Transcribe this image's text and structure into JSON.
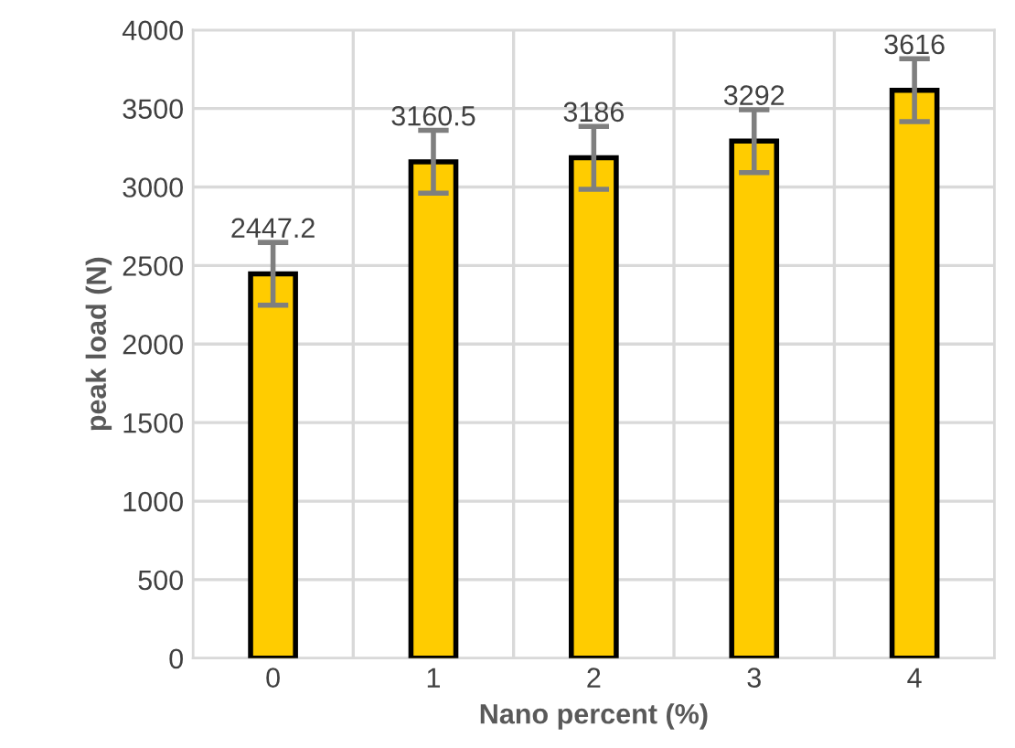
{
  "chart_data": {
    "type": "bar",
    "xlabel": "Nano percent (%)",
    "ylabel": "peak load (N)",
    "categories": [
      "0",
      "1",
      "2",
      "3",
      "4"
    ],
    "values": [
      2447.2,
      3160.5,
      3186,
      3292,
      3616
    ],
    "errors": [
      200,
      200,
      200,
      200,
      200
    ],
    "color": "#ffcc00",
    "ylim": [
      0,
      4000
    ],
    "yticks": [
      0,
      500,
      1000,
      1500,
      2000,
      2500,
      3000,
      3500,
      4000
    ],
    "grid": true,
    "data_labels": true
  }
}
